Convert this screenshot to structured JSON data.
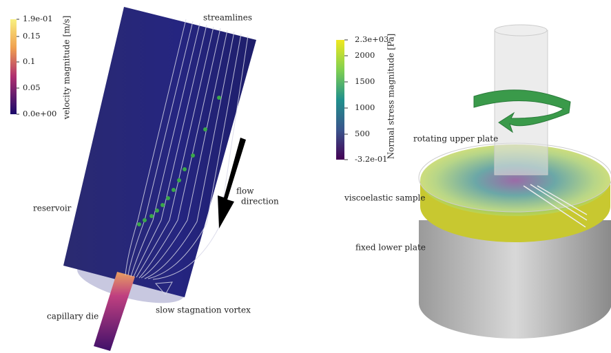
{
  "left": {
    "colorbar": {
      "title": "velocity magnitude [m/s]",
      "ticks": [
        "1.9e-01",
        "0.15",
        "0.1",
        "0.05",
        "0.0e+00"
      ]
    },
    "labels": {
      "streamlines": "streamlines",
      "flow": "flow",
      "direction": "direction",
      "reservoir": "reservoir",
      "capillary": "capillary die",
      "vortex": "slow stagnation vortex"
    }
  },
  "right": {
    "colorbar": {
      "title": "Normal stress magnitude [Pa]",
      "ticks": [
        "2.3e+03",
        "2000",
        "1500",
        "1000",
        "500",
        "-3.2e-01"
      ]
    },
    "labels": {
      "upper": "rotating upper plate",
      "sample": "viscoelastic sample",
      "lower": "fixed lower plate"
    }
  }
}
